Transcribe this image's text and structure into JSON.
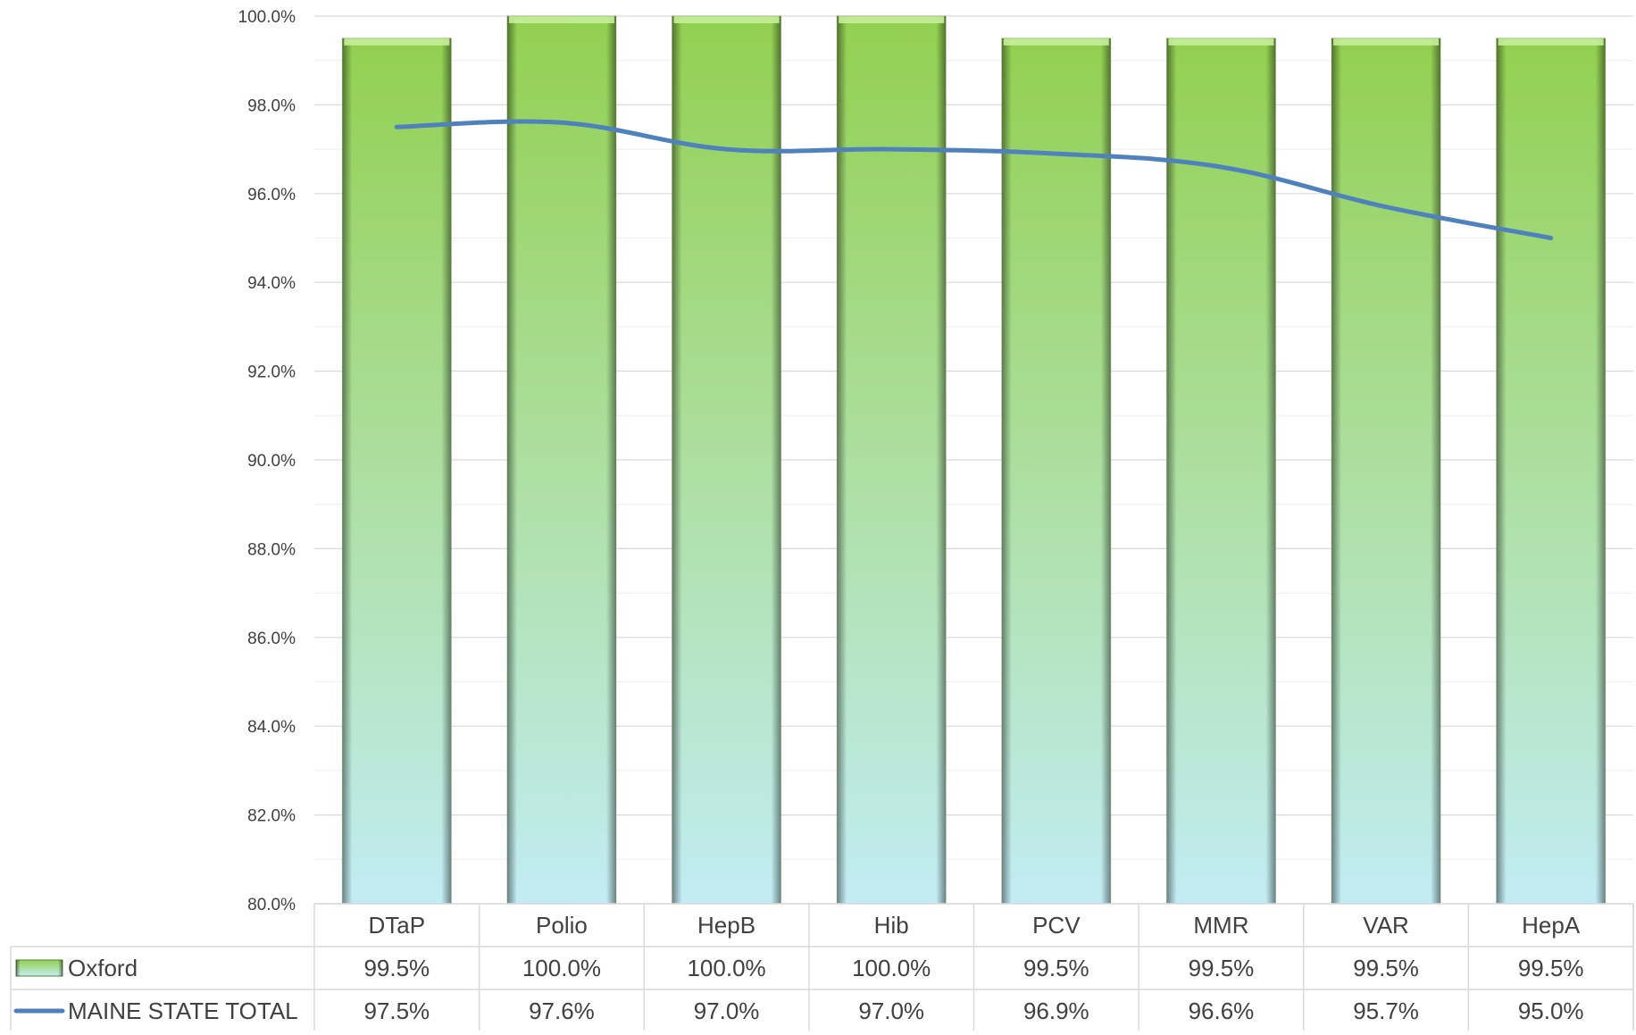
{
  "chart_data": {
    "type": "bar",
    "categories": [
      "DTaP",
      "Polio",
      "HepB",
      "Hib",
      "PCV",
      "MMR",
      "VAR",
      "HepA"
    ],
    "series": [
      {
        "name": "Oxford",
        "kind": "bar",
        "values": [
          99.5,
          100.0,
          100.0,
          100.0,
          99.5,
          99.5,
          99.5,
          99.5
        ],
        "labels": [
          "99.5%",
          "100.0%",
          "100.0%",
          "100.0%",
          "99.5%",
          "99.5%",
          "99.5%",
          "99.5%"
        ],
        "color_top": "#92d050",
        "color_bottom": "#c2ecf4"
      },
      {
        "name": "MAINE STATE TOTAL",
        "kind": "line",
        "values": [
          97.5,
          97.6,
          97.0,
          97.0,
          96.9,
          96.6,
          95.7,
          95.0
        ],
        "labels": [
          "97.5%",
          "97.6%",
          "97.0%",
          "97.0%",
          "96.9%",
          "96.6%",
          "95.7%",
          "95.0%"
        ],
        "color": "#4f81bd"
      }
    ],
    "ylim": [
      80,
      100
    ],
    "yticks": [
      "80.0%",
      "82.0%",
      "84.0%",
      "86.0%",
      "88.0%",
      "90.0%",
      "92.0%",
      "94.0%",
      "96.0%",
      "98.0%",
      "100.0%"
    ],
    "grid": true,
    "legend": "data-table"
  }
}
